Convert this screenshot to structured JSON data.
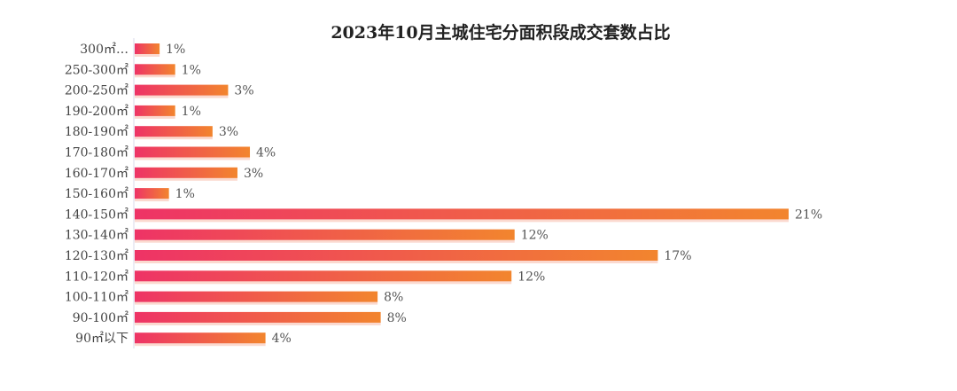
{
  "chart_data": {
    "type": "bar",
    "orientation": "horizontal",
    "title": "2023年10月主城住宅分面积段成交套数占比",
    "categories": [
      "300㎡…",
      "250-300㎡",
      "200-250㎡",
      "190-200㎡",
      "180-190㎡",
      "170-180㎡",
      "160-170㎡",
      "150-160㎡",
      "140-150㎡",
      "130-140㎡",
      "120-130㎡",
      "110-120㎡",
      "100-110㎡",
      "90-100㎡",
      "90㎡以下"
    ],
    "values": [
      0.8,
      1.3,
      3.0,
      1.3,
      2.5,
      3.7,
      3.3,
      1.1,
      21,
      12.2,
      16.8,
      12.1,
      7.8,
      7.9,
      4.2
    ],
    "labels": [
      "1%",
      "1%",
      "3%",
      "1%",
      "3%",
      "4%",
      "3%",
      "1%",
      "21%",
      "12%",
      "17%",
      "12%",
      "8%",
      "8%",
      "4%"
    ],
    "unit": "%",
    "xlim": [
      0,
      21
    ],
    "grid": false,
    "legend": "none",
    "colors": {
      "gradient_start": "#ee3366",
      "gradient_end": "#f2852e",
      "shadow": "#fbd9cf",
      "axis": "#d8d8e8"
    }
  }
}
